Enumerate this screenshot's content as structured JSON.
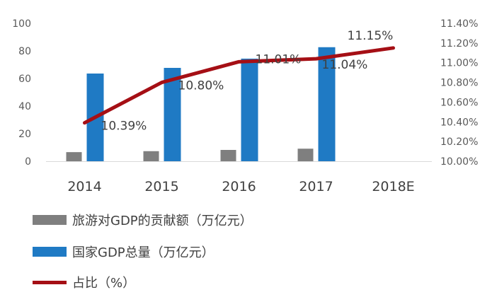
{
  "chart_data": {
    "type": "bar",
    "categories": [
      "2014",
      "2015",
      "2016",
      "2017",
      "2018E"
    ],
    "series": [
      {
        "name": "旅游对GDP的贡献额（万亿元）",
        "kind": "bar",
        "axis": "left",
        "color": "#7f7f7f",
        "values": [
          6.6,
          7.3,
          8.2,
          9.1,
          null
        ]
      },
      {
        "name": "国家GDP总量（万亿元）",
        "kind": "bar",
        "axis": "left",
        "color": "#1f7ac4",
        "values": [
          63.6,
          67.7,
          74.4,
          82.7,
          null
        ]
      },
      {
        "name": "占比（%）",
        "kind": "line",
        "axis": "right",
        "color": "#a50f15",
        "values": [
          10.39,
          10.8,
          11.01,
          11.04,
          11.15
        ]
      }
    ],
    "data_labels": [
      "10.39%",
      "10.80%",
      "11.01%",
      "11.04%",
      "11.15%"
    ],
    "left_axis": {
      "min": 0,
      "max": 100,
      "ticks": [
        "0",
        "20",
        "40",
        "60",
        "80",
        "100"
      ]
    },
    "right_axis": {
      "min": 10.0,
      "max": 11.4,
      "ticks": [
        "10.00%",
        "10.20%",
        "10.40%",
        "10.60%",
        "10.80%",
        "11.00%",
        "11.20%",
        "11.40%"
      ]
    },
    "legend_position": "bottom-left",
    "grid": false
  }
}
